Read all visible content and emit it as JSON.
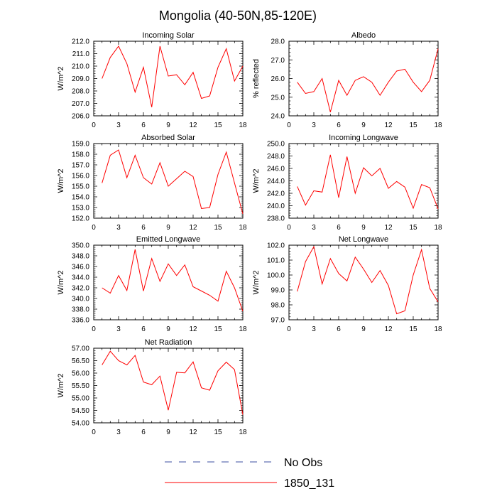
{
  "page": {
    "title": "Mongolia (40-50N,85-120E)",
    "legend": {
      "items": [
        {
          "label": "No Obs",
          "color": "#3b4fa0",
          "style": "dashed"
        },
        {
          "label": "1850_131",
          "color": "#ff0000",
          "style": "solid"
        }
      ]
    }
  },
  "chart_data": [
    {
      "type": "line",
      "title": "Incoming Solar",
      "ylabel": "W/m^2",
      "xlabel": "",
      "xlim": [
        0,
        18
      ],
      "ylim": [
        206.0,
        212.0
      ],
      "xticks": [
        "0",
        "3",
        "6",
        "9",
        "12",
        "15",
        "18"
      ],
      "yticks": [
        "206.0",
        "207.0",
        "208.0",
        "209.0",
        "210.0",
        "211.0",
        "212.0"
      ],
      "grid": false,
      "series": [
        {
          "name": "1850_131",
          "color": "#ff0000",
          "x": [
            1,
            2,
            3,
            4,
            5,
            6,
            7,
            8,
            9,
            10,
            11,
            12,
            13,
            14,
            15,
            16,
            17,
            18
          ],
          "y": [
            209.0,
            210.7,
            211.6,
            210.2,
            207.9,
            209.9,
            206.7,
            211.6,
            209.2,
            209.3,
            208.5,
            209.5,
            207.4,
            207.6,
            209.9,
            211.4,
            208.8,
            210.0
          ]
        }
      ]
    },
    {
      "type": "line",
      "title": "Albedo",
      "ylabel": "% reflected",
      "xlabel": "",
      "xlim": [
        0,
        18
      ],
      "ylim": [
        24.0,
        28.0
      ],
      "xticks": [
        "0",
        "3",
        "6",
        "9",
        "12",
        "15",
        "18"
      ],
      "yticks": [
        "24.0",
        "25.0",
        "26.0",
        "27.0",
        "28.0"
      ],
      "grid": false,
      "series": [
        {
          "name": "1850_131",
          "color": "#ff0000",
          "x": [
            1,
            2,
            3,
            4,
            5,
            6,
            7,
            8,
            9,
            10,
            11,
            12,
            13,
            14,
            15,
            16,
            17,
            18
          ],
          "y": [
            25.8,
            25.2,
            25.3,
            26.0,
            24.2,
            25.9,
            25.1,
            25.9,
            26.1,
            25.8,
            25.1,
            25.8,
            26.4,
            26.5,
            25.8,
            25.3,
            25.9,
            27.6
          ]
        }
      ]
    },
    {
      "type": "line",
      "title": "Absorbed Solar",
      "ylabel": "W/m^2",
      "xlabel": "",
      "xlim": [
        0,
        18
      ],
      "ylim": [
        152.0,
        159.0
      ],
      "xticks": [
        "0",
        "3",
        "6",
        "9",
        "12",
        "15",
        "18"
      ],
      "yticks": [
        "152.0",
        "153.0",
        "154.0",
        "155.0",
        "156.0",
        "157.0",
        "158.0",
        "159.0"
      ],
      "grid": false,
      "series": [
        {
          "name": "1850_131",
          "color": "#ff0000",
          "x": [
            1,
            2,
            3,
            4,
            5,
            6,
            7,
            8,
            9,
            10,
            11,
            12,
            13,
            14,
            15,
            16,
            17,
            18
          ],
          "y": [
            155.3,
            157.9,
            158.4,
            155.8,
            157.9,
            155.8,
            155.2,
            157.2,
            155.0,
            155.7,
            156.4,
            155.9,
            152.9,
            153.0,
            156.1,
            158.2,
            155.3,
            152.4
          ]
        }
      ]
    },
    {
      "type": "line",
      "title": "Incoming Longwave",
      "ylabel": "W/m^2",
      "xlabel": "",
      "xlim": [
        0,
        18
      ],
      "ylim": [
        238.0,
        250.0
      ],
      "xticks": [
        "0",
        "3",
        "6",
        "9",
        "12",
        "15",
        "18"
      ],
      "yticks": [
        "238.0",
        "240.0",
        "242.0",
        "244.0",
        "246.0",
        "248.0",
        "250.0"
      ],
      "grid": false,
      "series": [
        {
          "name": "1850_131",
          "color": "#ff0000",
          "x": [
            1,
            2,
            3,
            4,
            5,
            6,
            7,
            8,
            9,
            10,
            11,
            12,
            13,
            14,
            15,
            16,
            17,
            18
          ],
          "y": [
            243.1,
            240.1,
            242.4,
            242.2,
            248.2,
            241.3,
            247.9,
            242.0,
            246.1,
            244.8,
            246.0,
            242.8,
            243.9,
            243.0,
            239.6,
            243.4,
            242.9,
            239.5
          ]
        }
      ]
    },
    {
      "type": "line",
      "title": "Emitted Longwave",
      "ylabel": "W/m^2",
      "xlabel": "",
      "xlim": [
        0,
        18
      ],
      "ylim": [
        336.0,
        350.0
      ],
      "xticks": [
        "0",
        "3",
        "6",
        "9",
        "12",
        "15",
        "18"
      ],
      "yticks": [
        "336.0",
        "338.0",
        "340.0",
        "342.0",
        "344.0",
        "346.0",
        "348.0",
        "350.0"
      ],
      "grid": false,
      "series": [
        {
          "name": "1850_131",
          "color": "#ff0000",
          "x": [
            1,
            2,
            3,
            4,
            5,
            6,
            7,
            8,
            9,
            10,
            11,
            12,
            13,
            14,
            15,
            16,
            17,
            18
          ],
          "y": [
            342.0,
            341.0,
            344.3,
            341.5,
            349.2,
            341.4,
            347.5,
            343.2,
            346.5,
            344.3,
            346.3,
            342.2,
            341.4,
            340.6,
            339.5,
            345.1,
            342.0,
            337.6
          ]
        }
      ]
    },
    {
      "type": "line",
      "title": "Net Longwave",
      "ylabel": "W/m^2",
      "xlabel": "",
      "xlim": [
        0,
        18
      ],
      "ylim": [
        97.0,
        102.0
      ],
      "xticks": [
        "0",
        "3",
        "6",
        "9",
        "12",
        "15",
        "18"
      ],
      "yticks": [
        "97.0",
        "98.0",
        "99.0",
        "100.0",
        "101.0",
        "102.0"
      ],
      "grid": false,
      "series": [
        {
          "name": "1850_131",
          "color": "#ff0000",
          "x": [
            1,
            2,
            3,
            4,
            5,
            6,
            7,
            8,
            9,
            10,
            11,
            12,
            13,
            14,
            15,
            16,
            17,
            18
          ],
          "y": [
            98.9,
            100.9,
            101.9,
            99.4,
            101.1,
            100.1,
            99.6,
            101.2,
            100.4,
            99.5,
            100.3,
            99.3,
            97.4,
            97.6,
            100.0,
            101.7,
            99.1,
            98.2
          ]
        }
      ]
    },
    {
      "type": "line",
      "title": "Net Radiation",
      "ylabel": "W/m^2",
      "xlabel": "",
      "xlim": [
        0,
        18
      ],
      "ylim": [
        54.0,
        57.0
      ],
      "xticks": [
        "0",
        "3",
        "6",
        "9",
        "12",
        "15",
        "18"
      ],
      "yticks": [
        "54.00",
        "54.50",
        "55.00",
        "55.50",
        "56.00",
        "56.50",
        "57.00"
      ],
      "grid": false,
      "series": [
        {
          "name": "1850_131",
          "color": "#ff0000",
          "x": [
            1,
            2,
            3,
            4,
            5,
            6,
            7,
            8,
            9,
            10,
            11,
            12,
            13,
            14,
            15,
            16,
            17,
            18
          ],
          "y": [
            56.33,
            56.88,
            56.5,
            56.33,
            56.71,
            55.64,
            55.53,
            55.88,
            54.51,
            56.03,
            56.01,
            56.45,
            55.41,
            55.31,
            56.09,
            56.44,
            56.14,
            54.33
          ]
        }
      ]
    }
  ]
}
